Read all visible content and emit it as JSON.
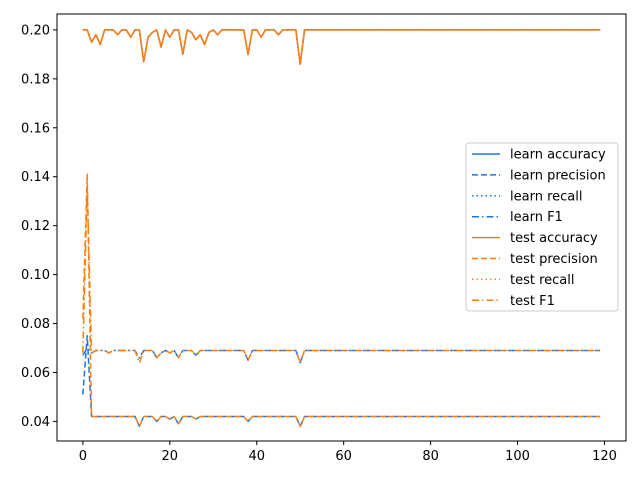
{
  "chart_data": {
    "type": "line",
    "title": "",
    "xlabel": "",
    "ylabel": "",
    "xlim": [
      -5.95,
      124.95
    ],
    "ylim": [
      0.032,
      0.2065
    ],
    "x_ticks": [
      0,
      20,
      40,
      60,
      80,
      100,
      120
    ],
    "x_tick_labels": [
      "0",
      "20",
      "40",
      "60",
      "80",
      "100",
      "120"
    ],
    "y_ticks": [
      0.04,
      0.06,
      0.08,
      0.1,
      0.12,
      0.14,
      0.16,
      0.18,
      0.2
    ],
    "y_tick_labels": [
      "0.04",
      "0.06",
      "0.08",
      "0.10",
      "0.12",
      "0.14",
      "0.16",
      "0.18",
      "0.20"
    ],
    "grid": false,
    "legend_position": "center-right",
    "x_range": [
      0,
      119
    ],
    "series": [
      {
        "name": "learn accuracy",
        "color": "#1f77e4",
        "dash": "solid",
        "values_by_x": {
          "0": 0.2,
          "2": 0.195,
          "3": 0.198,
          "4": 0.194,
          "5": 0.2,
          "8": 0.198,
          "11": 0.197,
          "12": 0.2,
          "14": 0.187,
          "15": 0.197,
          "16": 0.199,
          "18": 0.193,
          "19": 0.2,
          "20": 0.197,
          "21": 0.2,
          "23": 0.19,
          "24": 0.2,
          "25": 0.199,
          "26": 0.196,
          "27": 0.198,
          "28": 0.194,
          "29": 0.199,
          "31": 0.198,
          "32": 0.2,
          "38": 0.19,
          "39": 0.2,
          "41": 0.197,
          "42": 0.2,
          "45": 0.198,
          "47": 0.2,
          "50": 0.186,
          "51": 0.2,
          "119": 0.2
        },
        "default_value": 0.2
      },
      {
        "name": "learn precision",
        "color": "#1f77e4",
        "dash": "dashed",
        "values_by_x": {
          "0": 0.051,
          "1": 0.075,
          "2": 0.042,
          "4": 0.042,
          "13": 0.038,
          "15": 0.042,
          "17": 0.04,
          "18": 0.042,
          "20": 0.041,
          "22": 0.039,
          "23": 0.042,
          "26": 0.041,
          "28": 0.042,
          "38": 0.04,
          "39": 0.042,
          "50": 0.038,
          "51": 0.042,
          "119": 0.042
        },
        "default_value": 0.042
      },
      {
        "name": "learn recall",
        "color": "#1f77e4",
        "dash": "dotted",
        "values_by_x": {
          "0": 0.2,
          "2": 0.195,
          "3": 0.198,
          "4": 0.194,
          "5": 0.2,
          "8": 0.198,
          "11": 0.197,
          "12": 0.2,
          "14": 0.187,
          "15": 0.197,
          "16": 0.199,
          "18": 0.193,
          "19": 0.2,
          "20": 0.197,
          "21": 0.2,
          "23": 0.19,
          "24": 0.2,
          "25": 0.199,
          "26": 0.196,
          "27": 0.198,
          "28": 0.194,
          "29": 0.199,
          "31": 0.198,
          "32": 0.2,
          "38": 0.19,
          "39": 0.2,
          "41": 0.197,
          "42": 0.2,
          "45": 0.198,
          "47": 0.2,
          "50": 0.186,
          "51": 0.2,
          "119": 0.2
        },
        "default_value": 0.2
      },
      {
        "name": "learn F1",
        "color": "#1f77e4",
        "dash": "dashdot",
        "values_by_x": {
          "0": 0.067,
          "1": 0.07,
          "2": 0.068,
          "4": 0.069,
          "6": 0.068,
          "10": 0.069,
          "13": 0.066,
          "15": 0.069,
          "17": 0.066,
          "18": 0.068,
          "20": 0.068,
          "22": 0.066,
          "23": 0.069,
          "26": 0.067,
          "28": 0.069,
          "38": 0.065,
          "39": 0.069,
          "50": 0.064,
          "51": 0.069,
          "119": 0.069
        },
        "default_value": 0.069
      },
      {
        "name": "test accuracy",
        "color": "#ff7f0e",
        "dash": "solid",
        "values_by_x": {
          "0": 0.2,
          "2": 0.195,
          "3": 0.198,
          "4": 0.194,
          "5": 0.2,
          "8": 0.198,
          "11": 0.197,
          "12": 0.2,
          "14": 0.187,
          "15": 0.197,
          "16": 0.199,
          "18": 0.193,
          "19": 0.2,
          "20": 0.197,
          "21": 0.2,
          "23": 0.19,
          "24": 0.2,
          "25": 0.199,
          "26": 0.196,
          "27": 0.198,
          "28": 0.194,
          "29": 0.199,
          "31": 0.198,
          "32": 0.2,
          "38": 0.19,
          "39": 0.2,
          "41": 0.197,
          "42": 0.2,
          "45": 0.198,
          "47": 0.2,
          "50": 0.186,
          "51": 0.2,
          "119": 0.2
        },
        "default_value": 0.2
      },
      {
        "name": "test precision",
        "color": "#ff7f0e",
        "dash": "dashed",
        "values_by_x": {
          "0": 0.082,
          "1": 0.141,
          "2": 0.042,
          "4": 0.042,
          "13": 0.038,
          "15": 0.042,
          "17": 0.04,
          "18": 0.042,
          "20": 0.041,
          "22": 0.039,
          "23": 0.042,
          "26": 0.041,
          "28": 0.042,
          "38": 0.04,
          "39": 0.042,
          "50": 0.038,
          "51": 0.042,
          "119": 0.042
        },
        "default_value": 0.042
      },
      {
        "name": "test recall",
        "color": "#ff7f0e",
        "dash": "dotted",
        "values_by_x": {
          "0": 0.2,
          "2": 0.195,
          "3": 0.198,
          "4": 0.194,
          "5": 0.2,
          "8": 0.198,
          "11": 0.197,
          "12": 0.2,
          "14": 0.187,
          "15": 0.197,
          "16": 0.199,
          "18": 0.193,
          "19": 0.2,
          "20": 0.197,
          "21": 0.2,
          "23": 0.19,
          "24": 0.2,
          "25": 0.199,
          "26": 0.196,
          "27": 0.198,
          "28": 0.194,
          "29": 0.199,
          "31": 0.198,
          "32": 0.2,
          "38": 0.19,
          "39": 0.2,
          "41": 0.197,
          "42": 0.2,
          "45": 0.198,
          "47": 0.2,
          "50": 0.186,
          "51": 0.2,
          "119": 0.2
        },
        "default_value": 0.2
      },
      {
        "name": "test F1",
        "color": "#ff7f0e",
        "dash": "dashdot",
        "values_by_x": {
          "0": 0.068,
          "1": 0.136,
          "2": 0.068,
          "4": 0.069,
          "6": 0.068,
          "10": 0.069,
          "13": 0.064,
          "15": 0.069,
          "17": 0.066,
          "18": 0.068,
          "20": 0.068,
          "22": 0.066,
          "23": 0.069,
          "26": 0.067,
          "28": 0.069,
          "38": 0.065,
          "39": 0.069,
          "50": 0.064,
          "51": 0.069,
          "119": 0.069
        },
        "default_value": 0.069
      }
    ]
  }
}
